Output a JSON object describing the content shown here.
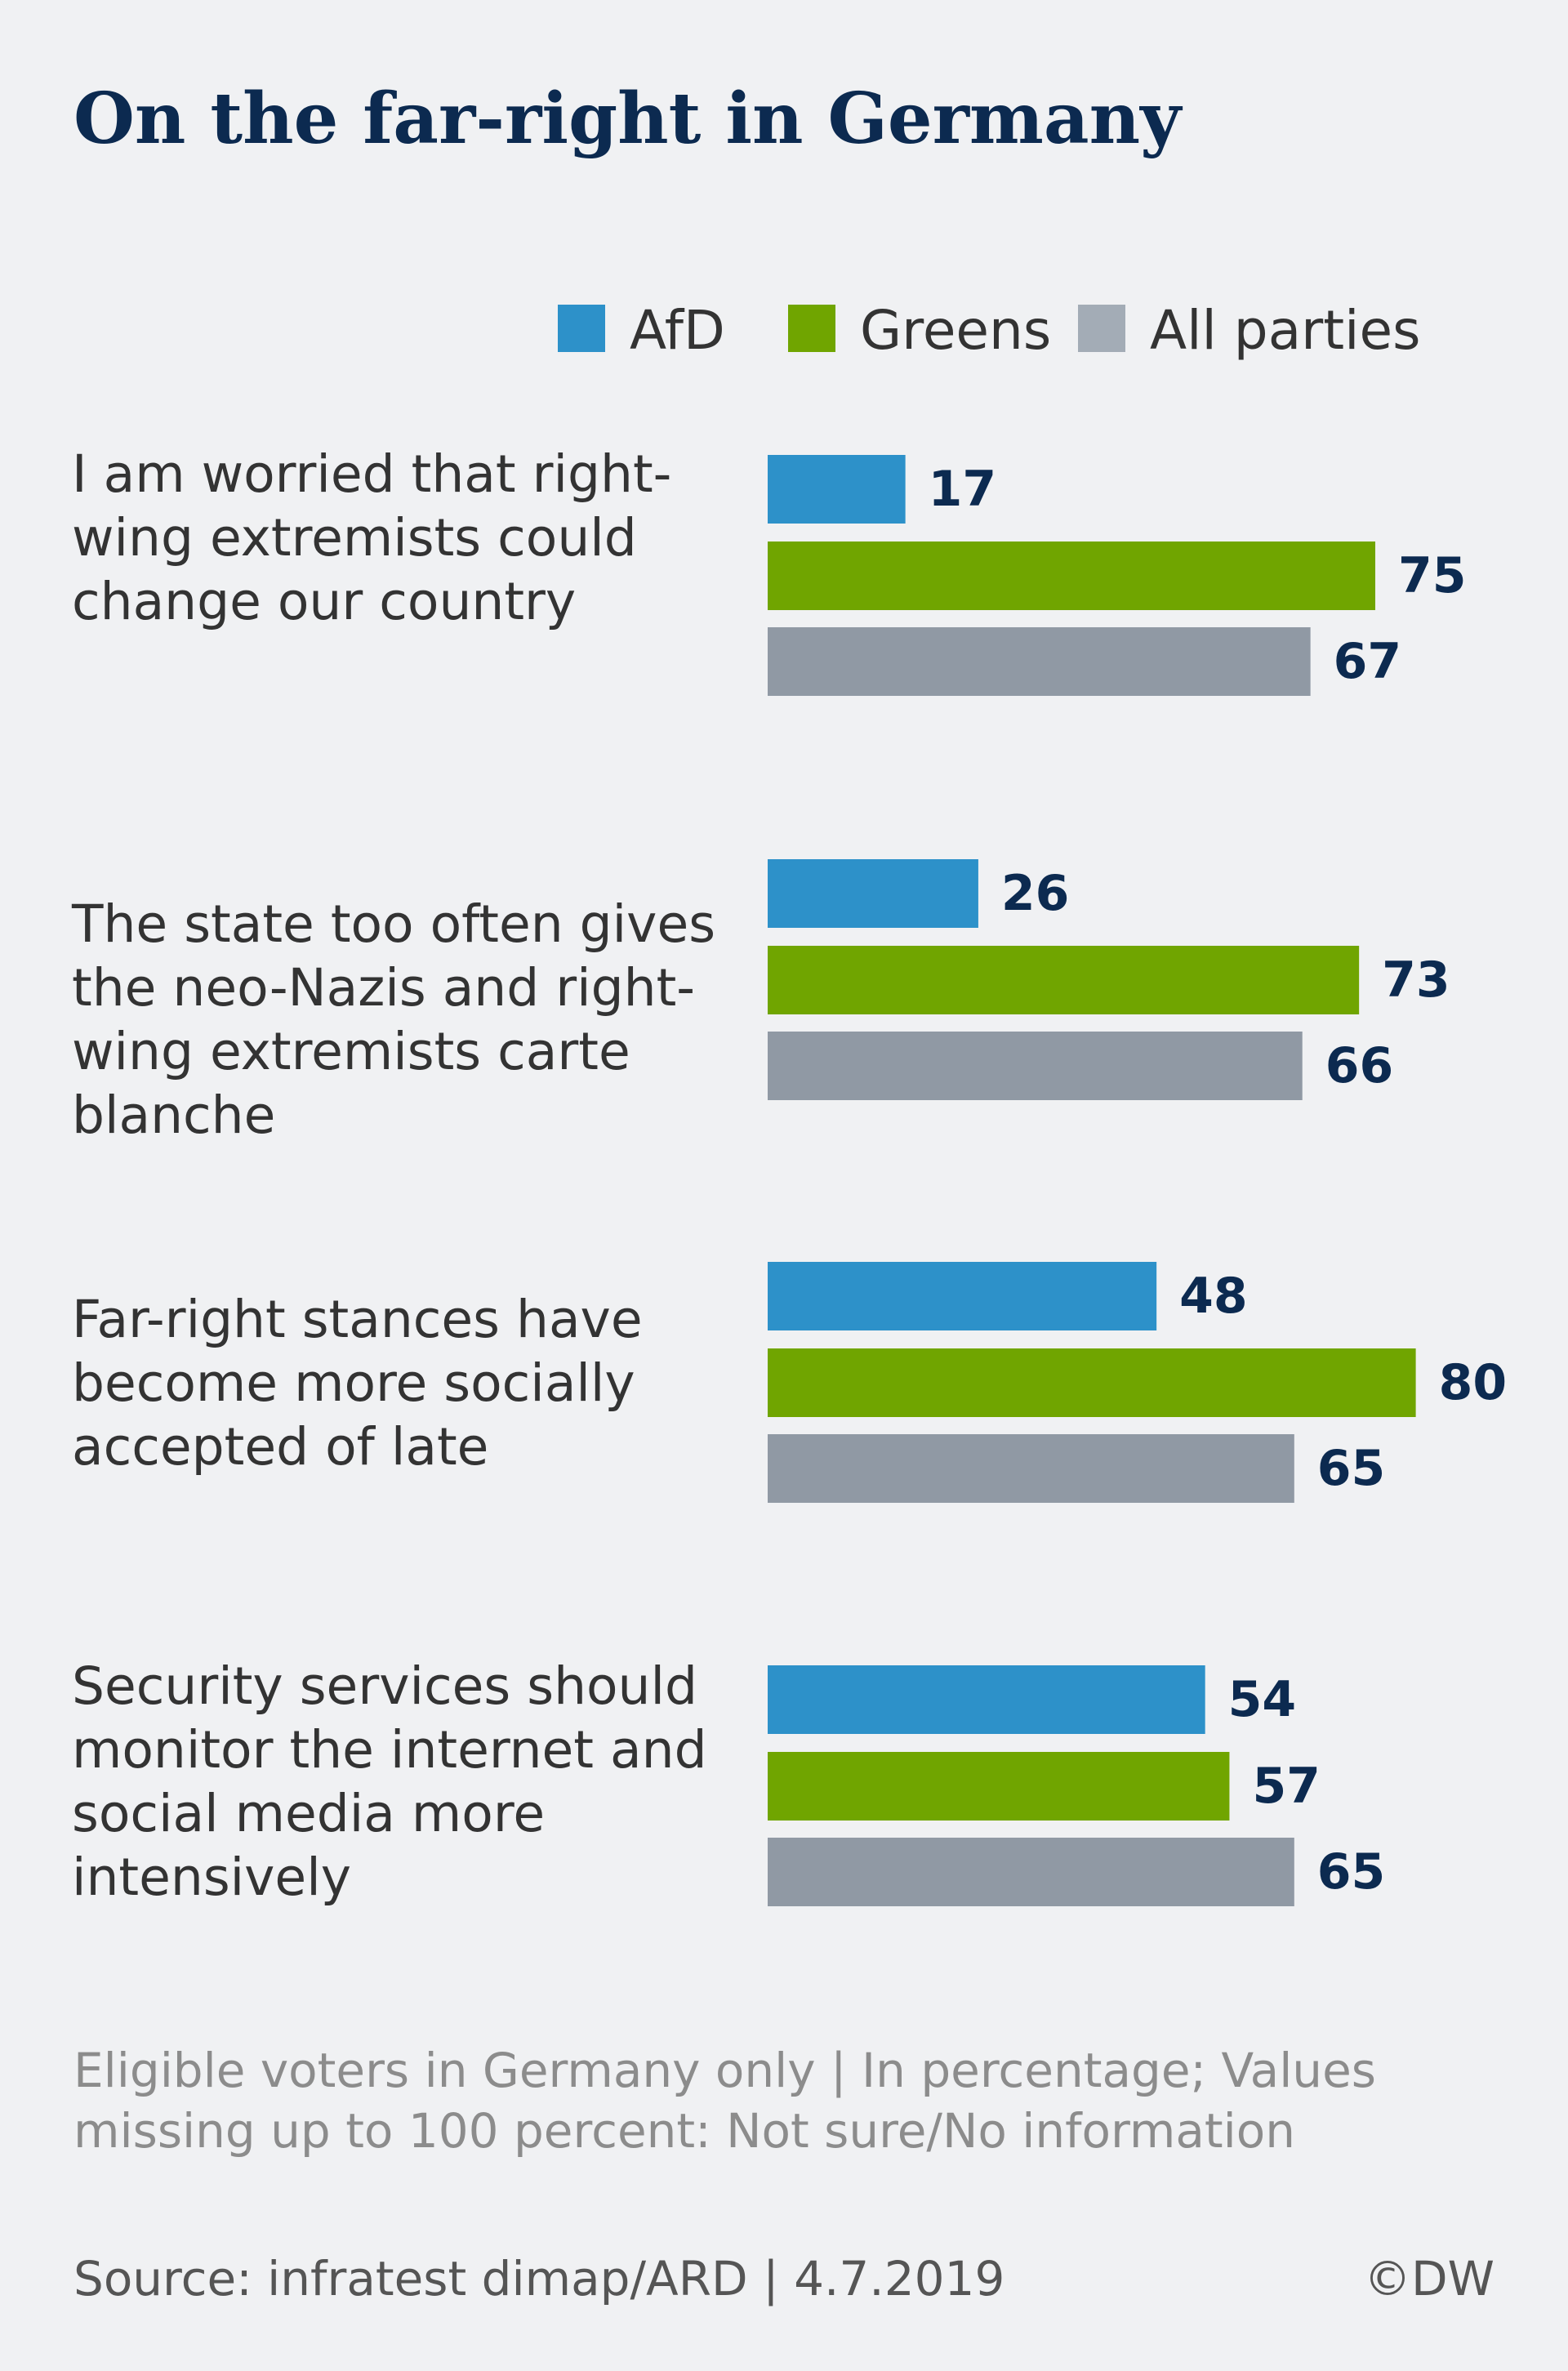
{
  "title": "On the far-right in Germany",
  "colors": {
    "AfD": "#2d91c9",
    "Greens": "#70a500",
    "All parties": "#9099a4",
    "value_text": "#0c2a50"
  },
  "chart_data": {
    "type": "bar",
    "orientation": "horizontal",
    "title": "On the far-right in Germany",
    "legend_position": "top-right",
    "grid": false,
    "xlim": [
      0,
      100
    ],
    "unit": "percent",
    "categories": [
      "I am worried that right-wing extremists could change our country",
      "The state too often gives the neo-Nazis and right-wing extremists carte blanche",
      "Far-right stances have become more socially accepted of late",
      "Security services should monitor the internet and social media more intensively"
    ],
    "series": [
      {
        "name": "AfD",
        "color": "#2d91c9",
        "values": [
          17,
          26,
          48,
          54
        ]
      },
      {
        "name": "Greens",
        "color": "#70a500",
        "values": [
          75,
          73,
          80,
          57
        ]
      },
      {
        "name": "All parties",
        "color": "#9099a4",
        "values": [
          67,
          66,
          65,
          65
        ]
      }
    ]
  },
  "footnote": "Eligible voters in Germany only | In percentage; Values missing up to 100 percent: Not sure/No information",
  "source": "Source: infratest dimap/ARD | 4.7.2019",
  "credit": "©DW"
}
